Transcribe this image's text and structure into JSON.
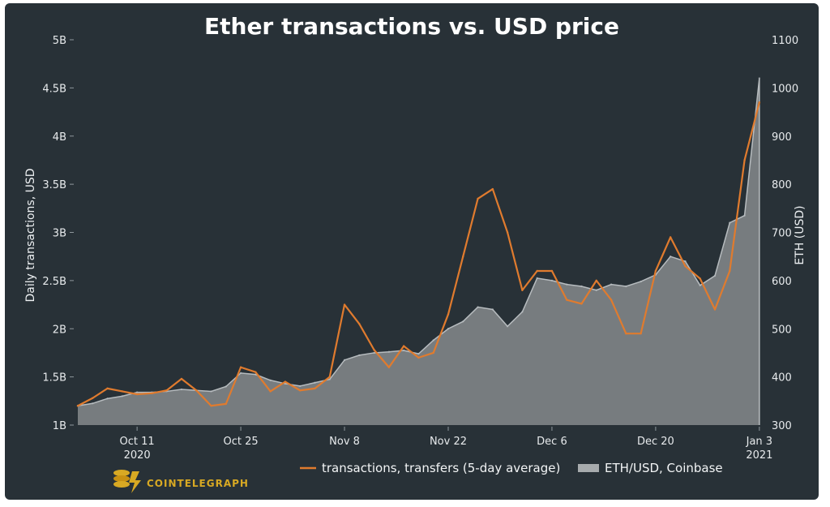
{
  "chart_data": {
    "type": "line",
    "title": "Ether transactions vs. USD price",
    "y_left_label": "Daily transactions, USD",
    "y_right_label": "ETH (USD)",
    "y_left_ticks": [
      "1B",
      "1.5B",
      "2B",
      "2.5B",
      "3B",
      "3.5B",
      "4B",
      "4.5B",
      "5B"
    ],
    "y_right_ticks": [
      "300",
      "400",
      "500",
      "600",
      "700",
      "800",
      "900",
      "1000",
      "1100"
    ],
    "ylim_left": [
      1.0,
      5.0
    ],
    "ylim_right": [
      300,
      1100
    ],
    "xlim": [
      "2020-10-03",
      "2021-01-04"
    ],
    "x_ticks": [
      {
        "date": "2020-10-11",
        "label": "Oct 11",
        "sub": "2020"
      },
      {
        "date": "2020-10-25",
        "label": "Oct 25",
        "sub": ""
      },
      {
        "date": "2020-11-08",
        "label": "Nov 8",
        "sub": ""
      },
      {
        "date": "2020-11-22",
        "label": "Nov 22",
        "sub": ""
      },
      {
        "date": "2020-12-06",
        "label": "Dec 6",
        "sub": ""
      },
      {
        "date": "2020-12-20",
        "label": "Dec 20",
        "sub": ""
      },
      {
        "date": "2021-01-03",
        "label": "Jan 3",
        "sub": "2021"
      }
    ],
    "grid": false,
    "legend_placement": "bottom-center",
    "series": [
      {
        "name": "transactions, transfers (5-day average)",
        "type": "line",
        "color": "#e07b2e",
        "x": [
          "2020-10-03",
          "2020-10-05",
          "2020-10-07",
          "2020-10-09",
          "2020-10-11",
          "2020-10-13",
          "2020-10-15",
          "2020-10-17",
          "2020-10-19",
          "2020-10-21",
          "2020-10-23",
          "2020-10-25",
          "2020-10-27",
          "2020-10-29",
          "2020-10-31",
          "2020-11-02",
          "2020-11-04",
          "2020-11-06",
          "2020-11-08",
          "2020-11-10",
          "2020-11-12",
          "2020-11-14",
          "2020-11-16",
          "2020-11-18",
          "2020-11-20",
          "2020-11-22",
          "2020-11-24",
          "2020-11-26",
          "2020-11-28",
          "2020-11-30",
          "2020-12-02",
          "2020-12-04",
          "2020-12-06",
          "2020-12-08",
          "2020-12-10",
          "2020-12-12",
          "2020-12-14",
          "2020-12-16",
          "2020-12-18",
          "2020-12-20",
          "2020-12-22",
          "2020-12-24",
          "2020-12-26",
          "2020-12-28",
          "2020-12-30",
          "2021-01-01",
          "2021-01-03"
        ],
        "values": [
          1.2,
          1.28,
          1.38,
          1.35,
          1.32,
          1.33,
          1.36,
          1.48,
          1.36,
          1.2,
          1.22,
          1.6,
          1.55,
          1.35,
          1.45,
          1.36,
          1.38,
          1.5,
          2.25,
          2.05,
          1.78,
          1.6,
          1.82,
          1.7,
          1.75,
          2.15,
          2.75,
          3.35,
          3.45,
          3.0,
          2.4,
          2.6,
          2.6,
          2.3,
          2.26,
          2.5,
          2.3,
          1.95,
          1.95,
          2.6,
          2.95,
          2.65,
          2.52,
          2.2,
          2.6,
          3.75,
          4.35
        ]
      },
      {
        "name": "ETH/USD, Coinbase",
        "type": "area",
        "color": "#a7abad",
        "x": [
          "2020-10-03",
          "2020-10-05",
          "2020-10-07",
          "2020-10-09",
          "2020-10-11",
          "2020-10-13",
          "2020-10-15",
          "2020-10-17",
          "2020-10-19",
          "2020-10-21",
          "2020-10-23",
          "2020-10-25",
          "2020-10-27",
          "2020-10-29",
          "2020-10-31",
          "2020-11-02",
          "2020-11-04",
          "2020-11-06",
          "2020-11-08",
          "2020-11-10",
          "2020-11-12",
          "2020-11-14",
          "2020-11-16",
          "2020-11-18",
          "2020-11-20",
          "2020-11-22",
          "2020-11-24",
          "2020-11-26",
          "2020-11-28",
          "2020-11-30",
          "2020-12-02",
          "2020-12-04",
          "2020-12-06",
          "2020-12-08",
          "2020-12-10",
          "2020-12-12",
          "2020-12-14",
          "2020-12-16",
          "2020-12-18",
          "2020-12-20",
          "2020-12-22",
          "2020-12-24",
          "2020-12-26",
          "2020-12-28",
          "2020-12-30",
          "2021-01-01",
          "2021-01-03"
        ],
        "values": [
          340,
          345,
          355,
          360,
          368,
          368,
          370,
          374,
          372,
          370,
          380,
          408,
          405,
          393,
          386,
          381,
          388,
          395,
          435,
          445,
          450,
          452,
          455,
          448,
          476,
          500,
          515,
          545,
          540,
          505,
          535,
          605,
          600,
          592,
          588,
          580,
          592,
          588,
          598,
          612,
          650,
          640,
          590,
          610,
          720,
          735,
          1020
        ]
      }
    ],
    "brand": "COINTELEGRAPH"
  }
}
